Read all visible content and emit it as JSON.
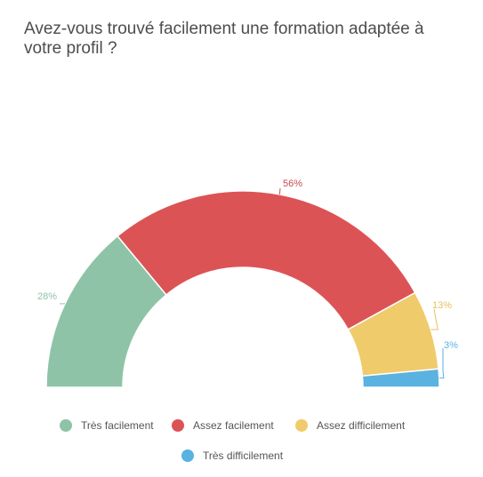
{
  "chart_data": {
    "type": "pie",
    "variant": "semi-donut",
    "title": "Avez-vous trouvé facilement une formation adaptée à votre profil ?",
    "categories": [
      "Très facilement",
      "Assez facilement",
      "Assez difficilement",
      "Très difficilement"
    ],
    "values": [
      28,
      56,
      13,
      3
    ],
    "data_labels": [
      "28%",
      "56%",
      "13%",
      "3%"
    ],
    "colors": [
      "#8fc3a8",
      "#dc5356",
      "#efcb6b",
      "#5ab2e0"
    ],
    "label_colors": [
      "#8fc3a8",
      "#c94a4d",
      "#e8c15c",
      "#5ab2e0"
    ],
    "legend_position": "bottom"
  }
}
